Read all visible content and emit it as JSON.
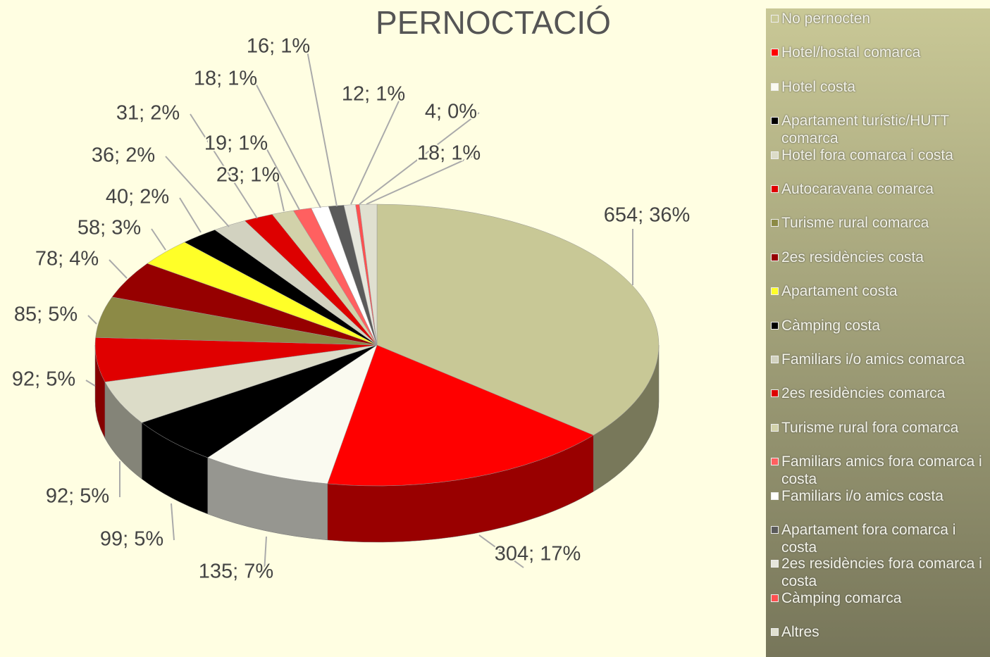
{
  "chart_data": {
    "type": "pie",
    "title": "PERNOCTACIÓ",
    "categories": [
      "No pernocten",
      "Hotel/hostal comarca",
      "Hotel costa",
      "Apartament turístic/HUTT comarca",
      "Hotel fora comarca i costa",
      "Autocaravana comarca",
      "Turisme rural comarca",
      "2es residències costa",
      "Apartament costa",
      "Càmping costa",
      "Familiars i/o amics comarca",
      "2es residències comarca",
      "Turisme rural fora comarca",
      "Familiars amics fora comarca i costa",
      "Familiars i/o amics costa",
      "Apartament fora comarca i costa",
      "2es residències fora comarca i costa",
      "Càmping comarca",
      "Altres"
    ],
    "values": [
      654,
      304,
      135,
      99,
      92,
      92,
      85,
      78,
      58,
      40,
      36,
      31,
      23,
      19,
      18,
      16,
      12,
      4,
      18
    ],
    "value_labels": [
      "654; 36%",
      "304; 17%",
      "135; 7%",
      "99; 5%",
      "92; 5%",
      "92; 5%",
      "85; 5%",
      "78; 4%",
      "58; 3%",
      "40; 2%",
      "36; 2%",
      "31; 2%",
      "23; 1%",
      "19; 1%",
      "18; 1%",
      "16; 1%",
      "12; 1%",
      "4; 0%",
      "18; 1%"
    ],
    "colors": [
      "#c8c896",
      "#ff0000",
      "#fafaf0",
      "#000000",
      "#dcdcc8",
      "#e00000",
      "#8c8a46",
      "#960000",
      "#ffff28",
      "#000000",
      "#d2d2c0",
      "#dd0000",
      "#d2d2aa",
      "#ff6060",
      "#ffffff",
      "#5a5a5a",
      "#e6e6dc",
      "#ff5050",
      "#e0e0d0"
    ],
    "legend": "right"
  }
}
